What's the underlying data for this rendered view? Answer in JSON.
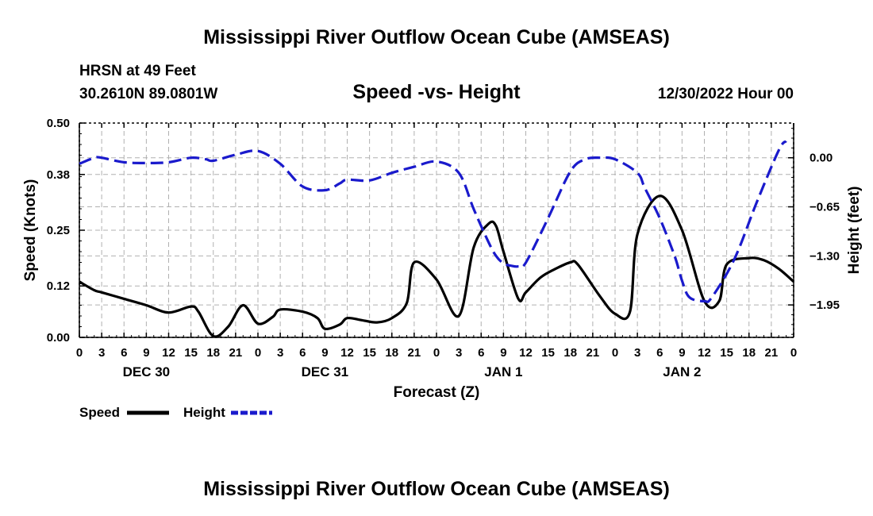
{
  "page": {
    "title": "Mississippi River Outflow Ocean Cube (AMSEAS)",
    "footer_title": "Mississippi River Outflow Ocean Cube (AMSEAS)",
    "station": "HRSN at 49 Feet",
    "coords": "30.2610N  89.0801W",
    "datetime": "12/30/2022 Hour 00"
  },
  "colors": {
    "speed": "#000000",
    "height": "#1a1acc",
    "grid": "#b0b0b0"
  },
  "chart_data": {
    "type": "line",
    "title": "Speed -vs- Height",
    "xlabel": "Forecast (Z)",
    "ylabel": "Speed (Knots)",
    "y2label": "Height (feet)",
    "x_hours_range": [
      0,
      96
    ],
    "x_tick_step": 3,
    "x_tick_labels": [
      "0",
      "3",
      "6",
      "9",
      "12",
      "15",
      "18",
      "21",
      "0",
      "3",
      "6",
      "9",
      "12",
      "15",
      "18",
      "21",
      "0",
      "3",
      "6",
      "9",
      "12",
      "15",
      "18",
      "21",
      "0",
      "3",
      "6",
      "9",
      "12",
      "15",
      "18",
      "21",
      "0"
    ],
    "day_labels": [
      {
        "label": "DEC 30",
        "hour": 9
      },
      {
        "label": "DEC 31",
        "hour": 33
      },
      {
        "label": "JAN 1",
        "hour": 57
      },
      {
        "label": "JAN 2",
        "hour": 81
      }
    ],
    "ylim": [
      0,
      0.5
    ],
    "y_ticks": [
      0.0,
      0.12,
      0.25,
      0.38,
      0.5
    ],
    "y_tick_labels": [
      "0.00",
      "0.12",
      "0.25",
      "0.38",
      "0.50"
    ],
    "y2lim": [
      -2.38,
      0.46
    ],
    "y2_ticks": [
      0.0,
      -0.65,
      -1.3,
      -1.95
    ],
    "y2_tick_labels": [
      "0.00",
      "−0.65",
      "−1.30",
      "−1.95"
    ],
    "legend": [
      {
        "name": "Speed",
        "style": "solid"
      },
      {
        "name": "Height",
        "style": "dashed"
      }
    ],
    "series": [
      {
        "name": "Speed",
        "axis": "left",
        "x": [
          0,
          2,
          3,
          6,
          9,
          12,
          15,
          16,
          18,
          20,
          22,
          24,
          26,
          27,
          30,
          32,
          33,
          35,
          36,
          38,
          40,
          42,
          44,
          45,
          48,
          51,
          53,
          55,
          56,
          57,
          59,
          60,
          62,
          64,
          66,
          67,
          70,
          72,
          74,
          75,
          78,
          81,
          84,
          86,
          87,
          90,
          92,
          94,
          96
        ],
        "values": [
          0.13,
          0.11,
          0.105,
          0.09,
          0.075,
          0.058,
          0.072,
          0.06,
          0.003,
          0.025,
          0.075,
          0.032,
          0.048,
          0.065,
          0.06,
          0.045,
          0.02,
          0.03,
          0.045,
          0.04,
          0.035,
          0.045,
          0.08,
          0.175,
          0.135,
          0.05,
          0.21,
          0.265,
          0.26,
          0.2,
          0.09,
          0.105,
          0.14,
          0.16,
          0.175,
          0.17,
          0.095,
          0.055,
          0.06,
          0.24,
          0.33,
          0.25,
          0.085,
          0.085,
          0.17,
          0.185,
          0.18,
          0.16,
          0.13
        ]
      },
      {
        "name": "Height",
        "axis": "right",
        "x": [
          0,
          2,
          3,
          6,
          9,
          12,
          15,
          17,
          18,
          21,
          24,
          27,
          30,
          33,
          35,
          36,
          39,
          42,
          45,
          48,
          51,
          53,
          55,
          56,
          57,
          58,
          59,
          60,
          63,
          66,
          68,
          70,
          72,
          75,
          76,
          78,
          80,
          81,
          82,
          84,
          85,
          88,
          91,
          94,
          95
        ],
        "values": [
          -0.08,
          0.0,
          0.0,
          -0.06,
          -0.07,
          -0.06,
          0.0,
          -0.02,
          -0.04,
          0.04,
          0.09,
          -0.08,
          -0.38,
          -0.43,
          -0.34,
          -0.29,
          -0.3,
          -0.2,
          -0.12,
          -0.05,
          -0.2,
          -0.68,
          -1.12,
          -1.3,
          -1.4,
          -1.43,
          -1.44,
          -1.39,
          -0.8,
          -0.18,
          -0.02,
          0.0,
          -0.02,
          -0.2,
          -0.4,
          -0.8,
          -1.3,
          -1.63,
          -1.85,
          -1.9,
          -1.85,
          -1.35,
          -0.6,
          0.1,
          0.22
        ]
      }
    ]
  }
}
